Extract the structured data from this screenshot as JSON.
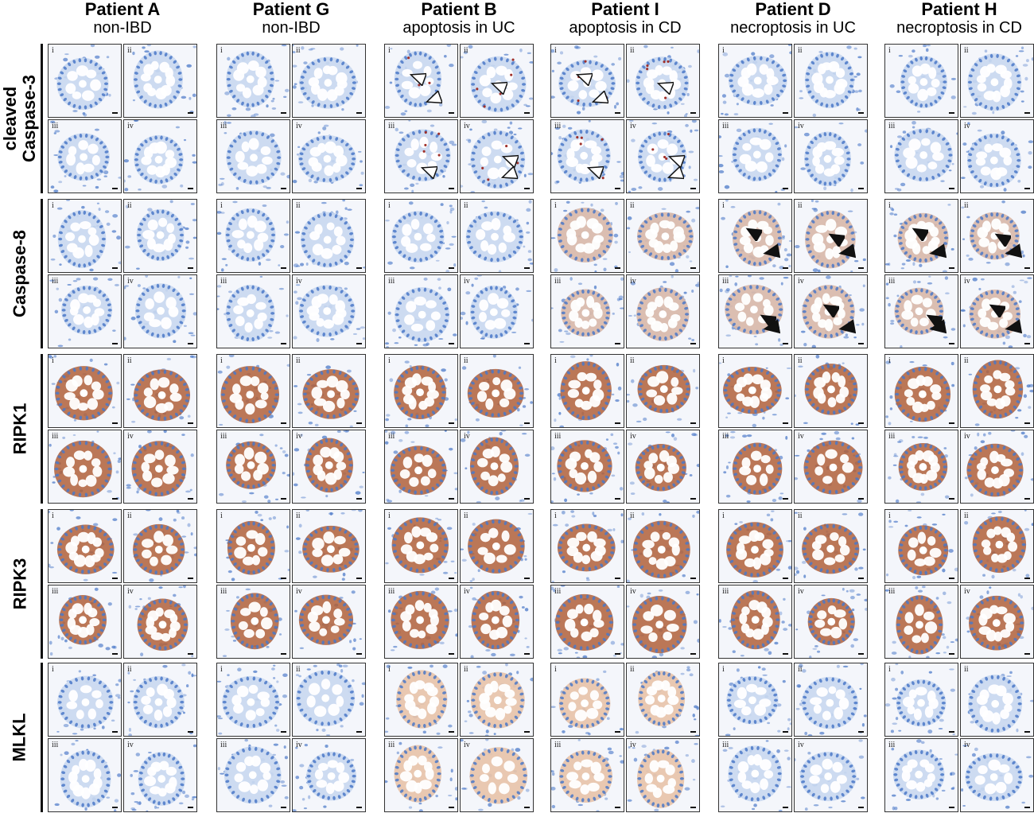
{
  "columns": [
    {
      "patient": "Patient A",
      "description": "non-IBD"
    },
    {
      "patient": "Patient G",
      "description": "non-IBD"
    },
    {
      "patient": "Patient B",
      "description": "apoptosis in UC"
    },
    {
      "patient": "Patient I",
      "description": "apoptosis in CD"
    },
    {
      "patient": "Patient D",
      "description": "necroptosis in UC"
    },
    {
      "patient": "Patient H",
      "description": "necroptosis in CD"
    }
  ],
  "rows": [
    {
      "label_line1": "cleaved",
      "label_line2": "Caspase-3",
      "stain": "blue",
      "arrows": "open"
    },
    {
      "label_line1": "",
      "label_line2": "Caspase-8",
      "stain": "blue",
      "arrows": "filled"
    },
    {
      "label_line1": "",
      "label_line2": "RIPK1",
      "stain": "brown",
      "arrows": "none"
    },
    {
      "label_line1": "",
      "label_line2": "RIPK3",
      "stain": "brown",
      "arrows": "none"
    },
    {
      "label_line1": "",
      "label_line2": "MLKL",
      "stain": "blue",
      "arrows": "none"
    }
  ],
  "panel_labels": [
    "i",
    "ii",
    "iii",
    "iv"
  ],
  "colors": {
    "hematoxylin": "#4a78c8",
    "hematoxylin_light": "#c9d8ef",
    "dab": "#b0603a",
    "dab_light": "#e8c3a8",
    "background": "#f4f6fb",
    "arrow": "#111111"
  }
}
